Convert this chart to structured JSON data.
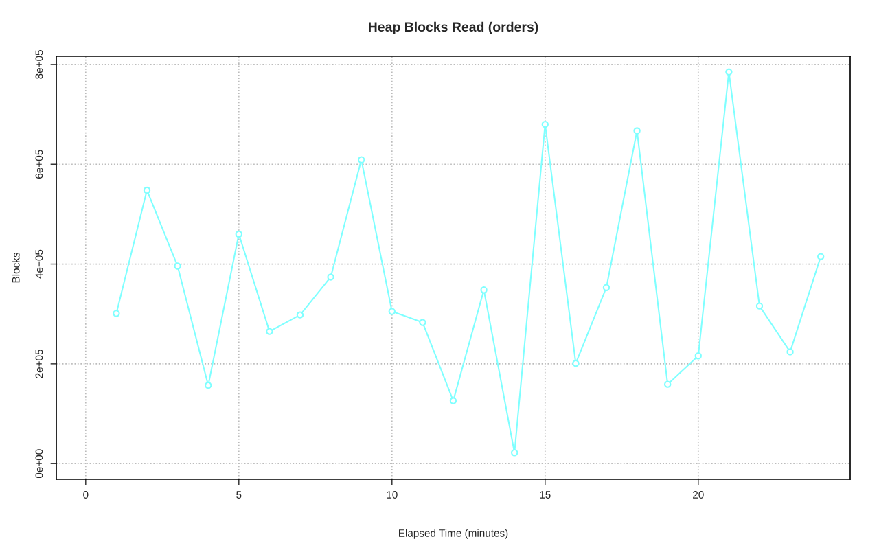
{
  "chart_data": {
    "type": "line",
    "title": "Heap Blocks Read (orders)",
    "xlabel": "Elapsed Time (minutes)",
    "ylabel": "Blocks",
    "x": [
      1,
      2,
      3,
      4,
      5,
      6,
      7,
      8,
      9,
      10,
      11,
      12,
      13,
      14,
      15,
      16,
      17,
      18,
      19,
      20,
      21,
      22,
      23,
      24
    ],
    "series": [
      {
        "color": "#7fffff",
        "values": [
          301000,
          548000,
          396000,
          157000,
          460000,
          265000,
          298000,
          374000,
          609000,
          305000,
          283000,
          126000,
          348000,
          22000,
          680000,
          201000,
          353000,
          667000,
          159000,
          216000,
          785000,
          316000,
          224000,
          415000
        ]
      }
    ],
    "xlim": [
      -0.96,
      24.96
    ],
    "ylim": [
      -31400,
      816400
    ],
    "xticks": [
      0,
      5,
      10,
      15,
      20
    ],
    "yticks": [
      {
        "value": 0,
        "label": "0e+00"
      },
      {
        "value": 200000,
        "label": "2e+05"
      },
      {
        "value": 400000,
        "label": "4e+05"
      },
      {
        "value": 600000,
        "label": "6e+05"
      },
      {
        "value": 800000,
        "label": "8e+05"
      }
    ],
    "grid": true,
    "marker": "circle",
    "line_style": "solid",
    "legend": false
  }
}
